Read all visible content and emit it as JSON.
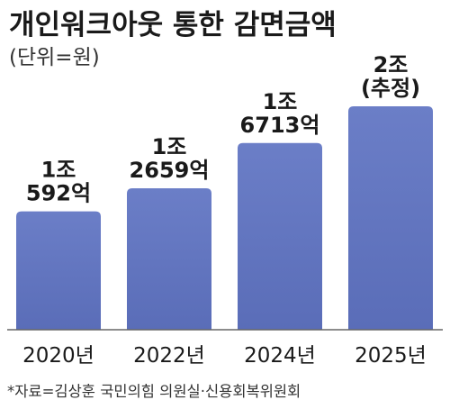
{
  "title": "개인워크아웃 통한 감면금액",
  "unit_note": "(단위=원)",
  "source": "*자료=김상훈 국민의힘 의원실·신용회복위원회",
  "colors": {
    "bar": "#5a6db8",
    "bar_top": "#6b7ec7",
    "axis": "#666666"
  },
  "chart_data": {
    "type": "bar",
    "categories": [
      "2020년",
      "2022년",
      "2024년",
      "2025년"
    ],
    "values": [
      10592,
      12659,
      16713,
      20000
    ],
    "value_unit": "억원",
    "data_labels": [
      [
        "1조",
        "592억"
      ],
      [
        "1조",
        "2659억"
      ],
      [
        "1조",
        "6713억"
      ],
      [
        "2조",
        "(추정)"
      ]
    ],
    "ylim": [
      0,
      20000
    ],
    "xlabel": "",
    "ylabel": "",
    "grid": false,
    "legend": "none"
  }
}
